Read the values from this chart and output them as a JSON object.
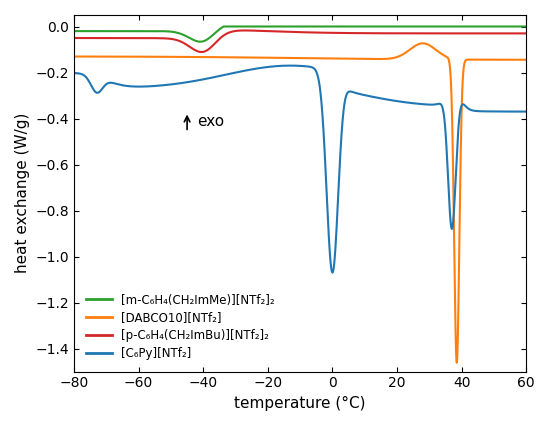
{
  "title": "",
  "xlabel": "temperature (°C)",
  "ylabel": "heat exchange (W/g)",
  "xlim": [
    -80,
    60
  ],
  "ylim": [
    -1.5,
    0.05
  ],
  "yticks": [
    0.0,
    -0.2,
    -0.4,
    -0.6,
    -0.8,
    -1.0,
    -1.2,
    -1.4
  ],
  "xticks": [
    -80,
    -60,
    -40,
    -20,
    0,
    20,
    40,
    60
  ],
  "colors": {
    "green": "#2ca02c",
    "orange": "#ff7f0e",
    "red": "#d62728",
    "blue": "#1f77b4"
  },
  "legend_labels": [
    "[m-C₆H₄(CH₂ImMe)][NTf₂]₂",
    "[DABCO10][NTf₂]",
    "[p-C₆H₄(CH₂ImBu)][NTf₂]₂",
    "[C₆Py][NTf₂]"
  ],
  "exo_annotation": "exo",
  "exo_x": -45,
  "exo_y": -0.46,
  "background_color": "#ffffff"
}
